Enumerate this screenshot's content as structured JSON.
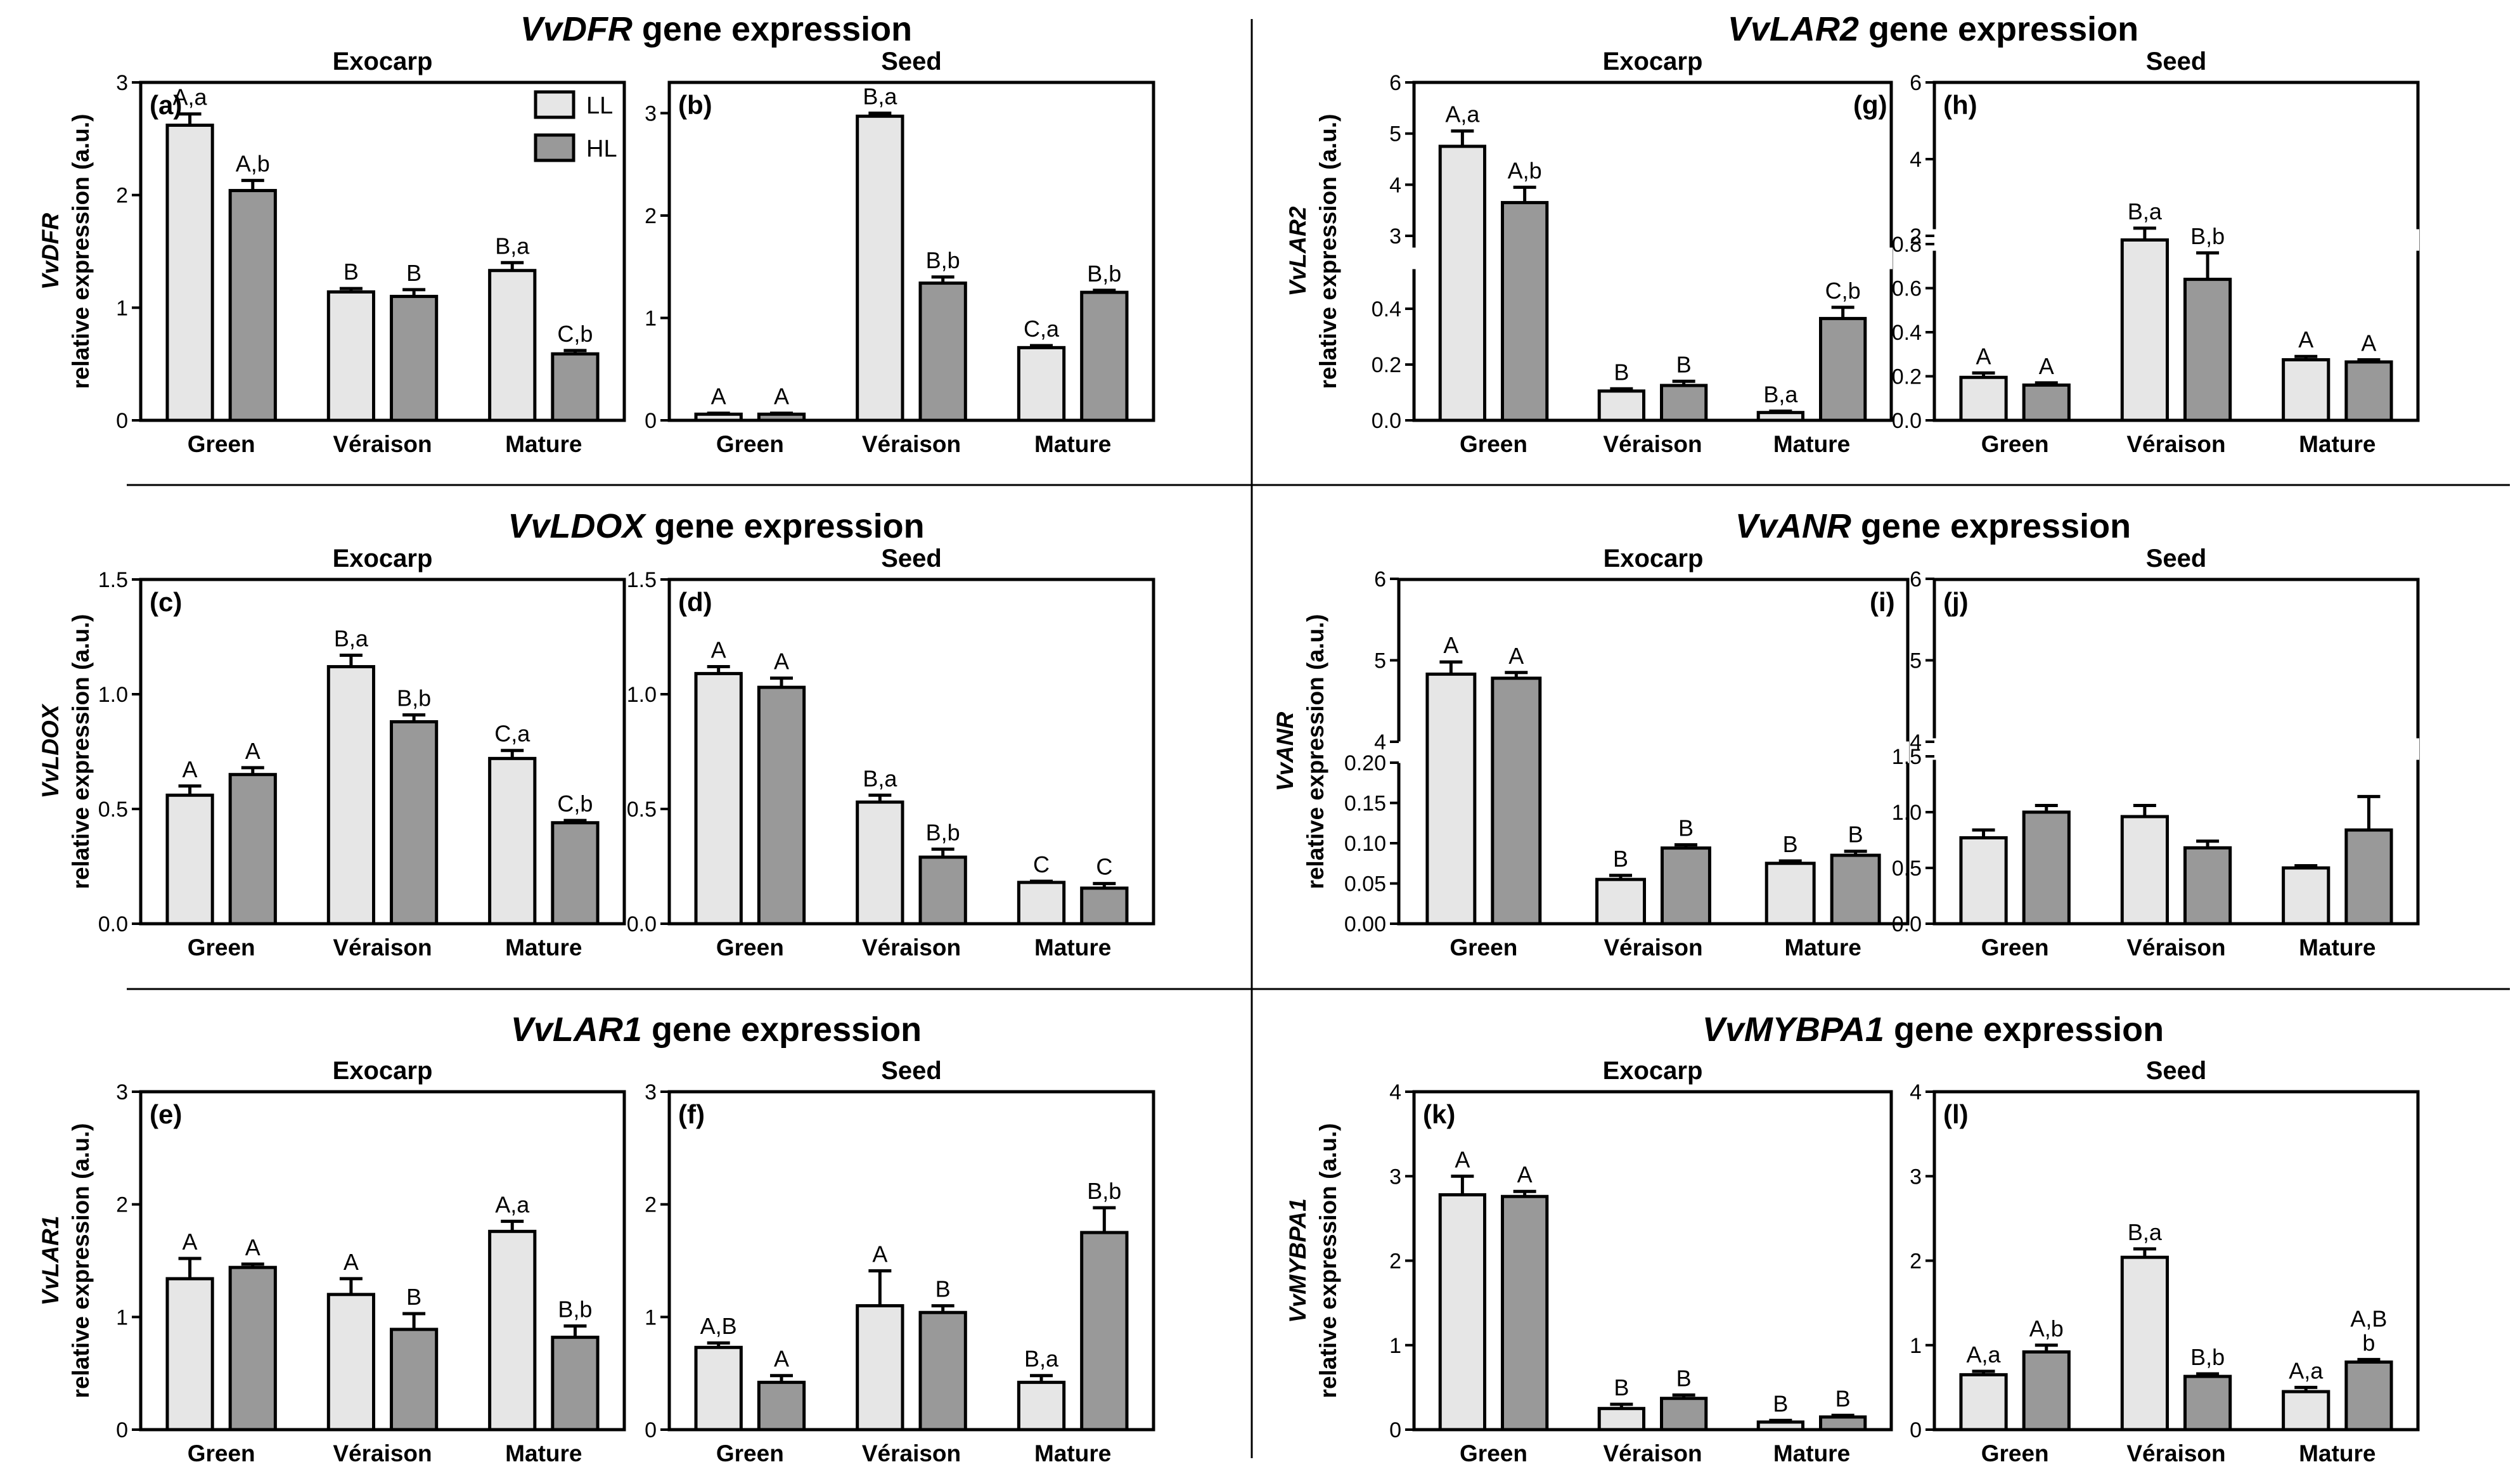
{
  "sections": [
    {
      "gene": "VvDFR",
      "suffix": " gene expression"
    },
    {
      "gene": "VvLAR2",
      "suffix": " gene expression"
    },
    {
      "gene": "VvLDOX",
      "suffix": " gene expression"
    },
    {
      "gene": "VvANR",
      "suffix": " gene expression"
    },
    {
      "gene": "VvLAR1",
      "suffix": " gene expression"
    },
    {
      "gene": "VvMYBPA1",
      "suffix": " gene expression"
    }
  ],
  "legend": {
    "items": [
      {
        "label": "LL",
        "color": "#e6e6e6"
      },
      {
        "label": "HL",
        "color": "#999999"
      }
    ]
  },
  "colors": {
    "LL": "#e6e6e6",
    "HL": "#999999",
    "axis": "#000000"
  },
  "ylabel_suffix": "relative expression (a.u.)",
  "chart_data": [
    {
      "type": "bar",
      "panel": "(a)",
      "title": "Exocarp",
      "gene": "VvDFR",
      "categories": [
        "Green",
        "Véraison",
        "Mature"
      ],
      "series": [
        {
          "name": "LL",
          "values": [
            2.62,
            1.14,
            1.33
          ],
          "errors": [
            0.1,
            0.03,
            0.07
          ]
        },
        {
          "name": "HL",
          "values": [
            2.04,
            1.1,
            0.59
          ],
          "errors": [
            0.09,
            0.06,
            0.03
          ]
        }
      ],
      "labels": [
        [
          "A,a",
          "A,b"
        ],
        [
          "B",
          "B"
        ],
        [
          "B,a",
          "C,b"
        ]
      ],
      "ylim": [
        0,
        3
      ],
      "yticks": [
        "0",
        "1",
        "2",
        "3"
      ]
    },
    {
      "type": "bar",
      "panel": "(b)",
      "title": "Seed",
      "gene": "VvDFR",
      "categories": [
        "Green",
        "Véraison",
        "Mature"
      ],
      "series": [
        {
          "name": "LL",
          "values": [
            0.06,
            2.97,
            0.71
          ],
          "errors": [
            0.01,
            0.03,
            0.02
          ]
        },
        {
          "name": "HL",
          "values": [
            0.06,
            1.34,
            1.25
          ],
          "errors": [
            0.01,
            0.06,
            0.02
          ]
        }
      ],
      "labels": [
        [
          "A",
          "A"
        ],
        [
          "B,a",
          "B,b"
        ],
        [
          "C,a",
          "B,b"
        ]
      ],
      "ylim": [
        0,
        3.3
      ],
      "yticks": [
        "0",
        "1",
        "2",
        "3"
      ]
    },
    {
      "type": "bar",
      "panel": "(g)",
      "title": "Exocarp",
      "gene": "VvLAR2",
      "categories": [
        "Green",
        "Véraison",
        "Mature"
      ],
      "series": [
        {
          "name": "LL",
          "values": [
            4.75,
            0.105,
            0.028
          ],
          "errors": [
            0.3,
            0.008,
            0.005
          ]
        },
        {
          "name": "HL",
          "values": [
            3.65,
            0.125,
            0.365
          ],
          "errors": [
            0.3,
            0.015,
            0.04
          ]
        }
      ],
      "labels": [
        [
          "A,a",
          "A,b"
        ],
        [
          "B",
          "B"
        ],
        [
          "B,a",
          "C,b"
        ]
      ],
      "ylim": [
        0,
        6
      ],
      "broken_axis": true,
      "yticks": [
        "0.0",
        "0.2",
        "0.4",
        "3",
        "4",
        "5",
        "6"
      ]
    },
    {
      "type": "bar",
      "panel": "(h)",
      "title": "Seed",
      "gene": "VvLAR2",
      "categories": [
        "Green",
        "Véraison",
        "Mature"
      ],
      "series": [
        {
          "name": "LL",
          "values": [
            0.195,
            1.8,
            0.275
          ],
          "errors": [
            0.02,
            0.4,
            0.015
          ]
        },
        {
          "name": "HL",
          "values": [
            0.16,
            0.64,
            0.265
          ],
          "errors": [
            0.01,
            0.12,
            0.01
          ]
        }
      ],
      "labels": [
        [
          "A",
          "A"
        ],
        [
          "B,a",
          "B,b"
        ],
        [
          "A",
          "A"
        ]
      ],
      "ylim": [
        0,
        6
      ],
      "broken_axis": true,
      "yticks": [
        "0.0",
        "0.2",
        "0.4",
        "0.6",
        "0.8",
        "2",
        "4",
        "6"
      ]
    },
    {
      "type": "bar",
      "panel": "(c)",
      "title": "Exocarp",
      "gene": "VvLDOX",
      "categories": [
        "Green",
        "Véraison",
        "Mature"
      ],
      "series": [
        {
          "name": "LL",
          "values": [
            0.56,
            1.12,
            0.72
          ],
          "errors": [
            0.04,
            0.05,
            0.035
          ]
        },
        {
          "name": "HL",
          "values": [
            0.65,
            0.88,
            0.44
          ],
          "errors": [
            0.03,
            0.03,
            0.01
          ]
        }
      ],
      "labels": [
        [
          "A",
          "A"
        ],
        [
          "B,a",
          "B,b"
        ],
        [
          "C,a",
          "C,b"
        ]
      ],
      "ylim": [
        0,
        1.5
      ],
      "yticks": [
        "0.0",
        "0.5",
        "1.0",
        "1.5"
      ]
    },
    {
      "type": "bar",
      "panel": "(d)",
      "title": "Seed",
      "gene": "VvLDOX",
      "categories": [
        "Green",
        "Véraison",
        "Mature"
      ],
      "series": [
        {
          "name": "LL",
          "values": [
            1.09,
            0.53,
            0.18
          ],
          "errors": [
            0.03,
            0.03,
            0.005
          ]
        },
        {
          "name": "HL",
          "values": [
            1.03,
            0.29,
            0.155
          ],
          "errors": [
            0.04,
            0.035,
            0.02
          ]
        }
      ],
      "labels": [
        [
          "A",
          "A"
        ],
        [
          "B,a",
          "B,b"
        ],
        [
          "C",
          "C"
        ]
      ],
      "ylim": [
        0,
        1.5
      ],
      "yticks": [
        "0.0",
        "0.5",
        "1.0",
        "1.5"
      ]
    },
    {
      "type": "bar",
      "panel": "(i)",
      "title": "Exocarp",
      "gene": "VvANR",
      "categories": [
        "Green",
        "Véraison",
        "Mature"
      ],
      "series": [
        {
          "name": "LL",
          "values": [
            4.83,
            0.055,
            0.075
          ],
          "errors": [
            0.15,
            0.005,
            0.003
          ]
        },
        {
          "name": "HL",
          "values": [
            4.78,
            0.094,
            0.085
          ],
          "errors": [
            0.07,
            0.004,
            0.005
          ]
        }
      ],
      "labels": [
        [
          "A",
          "A"
        ],
        [
          "B",
          "B"
        ],
        [
          "B",
          "B"
        ]
      ],
      "ylim": [
        0,
        6
      ],
      "broken_axis": true,
      "yticks": [
        "0.00",
        "0.05",
        "0.10",
        "0.15",
        "0.20",
        "4",
        "5",
        "6"
      ]
    },
    {
      "type": "bar",
      "panel": "(j)",
      "title": "Seed",
      "gene": "VvANR",
      "categories": [
        "Green",
        "Véraison",
        "Mature"
      ],
      "series": [
        {
          "name": "LL",
          "values": [
            0.77,
            0.96,
            0.5
          ],
          "errors": [
            0.07,
            0.1,
            0.02
          ]
        },
        {
          "name": "HL",
          "values": [
            1.0,
            0.68,
            0.84
          ],
          "errors": [
            0.06,
            0.06,
            0.3
          ]
        }
      ],
      "labels": [
        [
          "",
          ""
        ],
        [
          "",
          ""
        ],
        [
          "",
          ""
        ]
      ],
      "ylim": [
        0,
        6
      ],
      "broken_axis": true,
      "yticks": [
        "0.0",
        "0.5",
        "1.0",
        "1.5",
        "4",
        "5",
        "6"
      ]
    },
    {
      "type": "bar",
      "panel": "(e)",
      "title": "Exocarp",
      "gene": "VvLAR1",
      "categories": [
        "Green",
        "Véraison",
        "Mature"
      ],
      "series": [
        {
          "name": "LL",
          "values": [
            1.34,
            1.2,
            1.76
          ],
          "errors": [
            0.18,
            0.14,
            0.09
          ]
        },
        {
          "name": "HL",
          "values": [
            1.44,
            0.89,
            0.82
          ],
          "errors": [
            0.03,
            0.14,
            0.1
          ]
        }
      ],
      "labels": [
        [
          "A",
          "A"
        ],
        [
          "A",
          "B"
        ],
        [
          "A,a",
          "B,b"
        ]
      ],
      "ylim": [
        0,
        3
      ],
      "yticks": [
        "0",
        "1",
        "2",
        "3"
      ]
    },
    {
      "type": "bar",
      "panel": "(f)",
      "title": "Seed",
      "gene": "VvLAR1",
      "categories": [
        "Green",
        "Véraison",
        "Mature"
      ],
      "series": [
        {
          "name": "LL",
          "values": [
            0.73,
            1.1,
            0.42
          ],
          "errors": [
            0.04,
            0.31,
            0.06
          ]
        },
        {
          "name": "HL",
          "values": [
            0.42,
            1.04,
            1.75
          ],
          "errors": [
            0.06,
            0.06,
            0.22
          ]
        }
      ],
      "labels": [
        [
          "A,B",
          "A"
        ],
        [
          "A",
          "B"
        ],
        [
          "B,a",
          "B,b"
        ]
      ],
      "ylim": [
        0,
        3
      ],
      "yticks": [
        "0",
        "1",
        "2",
        "3"
      ]
    },
    {
      "type": "bar",
      "panel": "(k)",
      "title": "Exocarp",
      "gene": "VvMYBPA1",
      "categories": [
        "Green",
        "Véraison",
        "Mature"
      ],
      "series": [
        {
          "name": "LL",
          "values": [
            2.78,
            0.25,
            0.09
          ],
          "errors": [
            0.22,
            0.05,
            0.02
          ]
        },
        {
          "name": "HL",
          "values": [
            2.76,
            0.37,
            0.15
          ],
          "errors": [
            0.06,
            0.04,
            0.02
          ]
        }
      ],
      "labels": [
        [
          "A",
          "A"
        ],
        [
          "B",
          "B"
        ],
        [
          "B",
          "B"
        ]
      ],
      "ylim": [
        0,
        4
      ],
      "yticks": [
        "0",
        "1",
        "2",
        "3",
        "4"
      ]
    },
    {
      "type": "bar",
      "panel": "(l)",
      "title": "Seed",
      "gene": "VvMYBPA1",
      "categories": [
        "Green",
        "Véraison",
        "Mature"
      ],
      "series": [
        {
          "name": "LL",
          "values": [
            0.65,
            2.04,
            0.45
          ],
          "errors": [
            0.04,
            0.1,
            0.05
          ]
        },
        {
          "name": "HL",
          "values": [
            0.92,
            0.63,
            0.8
          ],
          "errors": [
            0.08,
            0.03,
            0.03
          ]
        }
      ],
      "labels": [
        [
          "A,a",
          "A,b"
        ],
        [
          "B,a",
          "B,b"
        ],
        [
          "A,a",
          "A,B b"
        ]
      ],
      "ylim": [
        0,
        4
      ],
      "yticks": [
        "0",
        "1",
        "2",
        "3",
        "4"
      ]
    }
  ]
}
